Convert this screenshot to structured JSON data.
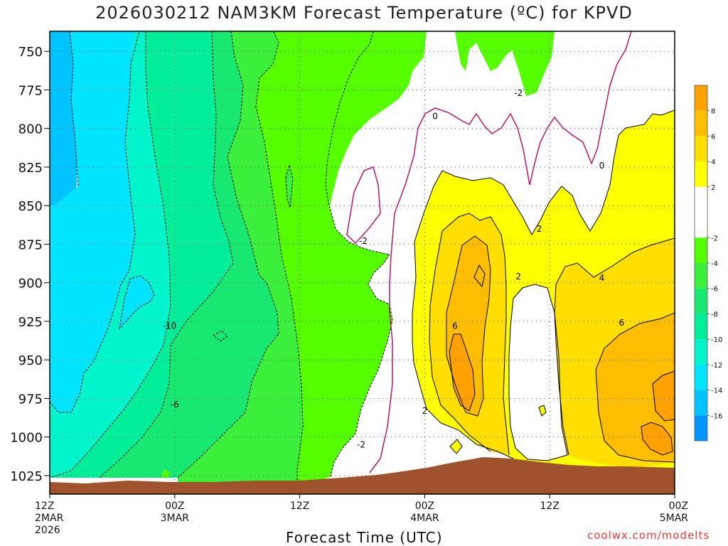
{
  "title": "2026030212 NAM3KM Forecast Temperature (ºC) for KPVD",
  "credit": "coolwx.com/modelts",
  "chart_data": {
    "type": "heatmap",
    "title": "2026030212 NAM3KM Forecast Temperature (ºC) for KPVD",
    "xlabel": "Forecast Time (UTC)",
    "ylabel": "",
    "y_levels": [
      750,
      775,
      800,
      825,
      850,
      875,
      900,
      925,
      950,
      975,
      1000,
      1025
    ],
    "x_ticks": [
      {
        "line1": "12Z",
        "line2": "2MAR",
        "line3": "2026"
      },
      {
        "line1": "00Z",
        "line2": "3MAR",
        "line3": ""
      },
      {
        "line1": "12Z",
        "line2": "",
        "line3": ""
      },
      {
        "line1": "00Z",
        "line2": "4MAR",
        "line3": ""
      },
      {
        "line1": "12Z",
        "line2": "",
        "line3": ""
      },
      {
        "line1": "00Z",
        "line2": "5MAR",
        "line3": ""
      }
    ],
    "x_hours": [
      0,
      12,
      24,
      36,
      48,
      60
    ],
    "colorbar": {
      "labels": [
        "8",
        "6",
        "4",
        "2",
        "-2",
        "-4",
        "-6",
        "-8",
        "-10",
        "-12",
        "-14",
        "-16"
      ],
      "bins": [
        {
          "min": 8,
          "max": 10,
          "color": "#ffa100"
        },
        {
          "min": 6,
          "max": 8,
          "color": "#ffbd00"
        },
        {
          "min": 4,
          "max": 6,
          "color": "#ffde00"
        },
        {
          "min": 2,
          "max": 4,
          "color": "#ffff00"
        },
        {
          "min": -2,
          "max": 2,
          "color": "#ffffff"
        },
        {
          "min": -4,
          "max": -2,
          "color": "#55ff00"
        },
        {
          "min": -6,
          "max": -4,
          "color": "#3bf03b"
        },
        {
          "min": -8,
          "max": -6,
          "color": "#17e872"
        },
        {
          "min": -10,
          "max": -8,
          "color": "#00ee99"
        },
        {
          "min": -12,
          "max": -10,
          "color": "#00f5cc"
        },
        {
          "min": -14,
          "max": -12,
          "color": "#00e5ff"
        },
        {
          "min": -16,
          "max": -14,
          "color": "#00c4ff"
        },
        {
          "min": -18,
          "max": -16,
          "color": "#0096ff"
        }
      ]
    },
    "contour_labels": [
      {
        "text": "0",
        "hour": 37.0,
        "p": 792
      },
      {
        "text": "0",
        "hour": 53.0,
        "p": 824
      },
      {
        "text": "-2",
        "hour": 45.0,
        "p": 777
      },
      {
        "text": "-2",
        "hour": 30.1,
        "p": 873
      },
      {
        "text": "-2",
        "hour": 29.9,
        "p": 1005
      },
      {
        "text": "2",
        "hour": 47.0,
        "p": 865
      },
      {
        "text": "2",
        "hour": 45.0,
        "p": 896
      },
      {
        "text": "2",
        "hour": 36.0,
        "p": 983
      },
      {
        "text": "4",
        "hour": 53.0,
        "p": 897
      },
      {
        "text": "6",
        "hour": 38.9,
        "p": 928
      },
      {
        "text": "6",
        "hour": 54.9,
        "p": 926
      },
      {
        "text": "-10",
        "hour": 11.5,
        "p": 928
      },
      {
        "text": "-6",
        "hour": 12.0,
        "p": 979
      }
    ],
    "terrain_color": "#a0522d"
  }
}
